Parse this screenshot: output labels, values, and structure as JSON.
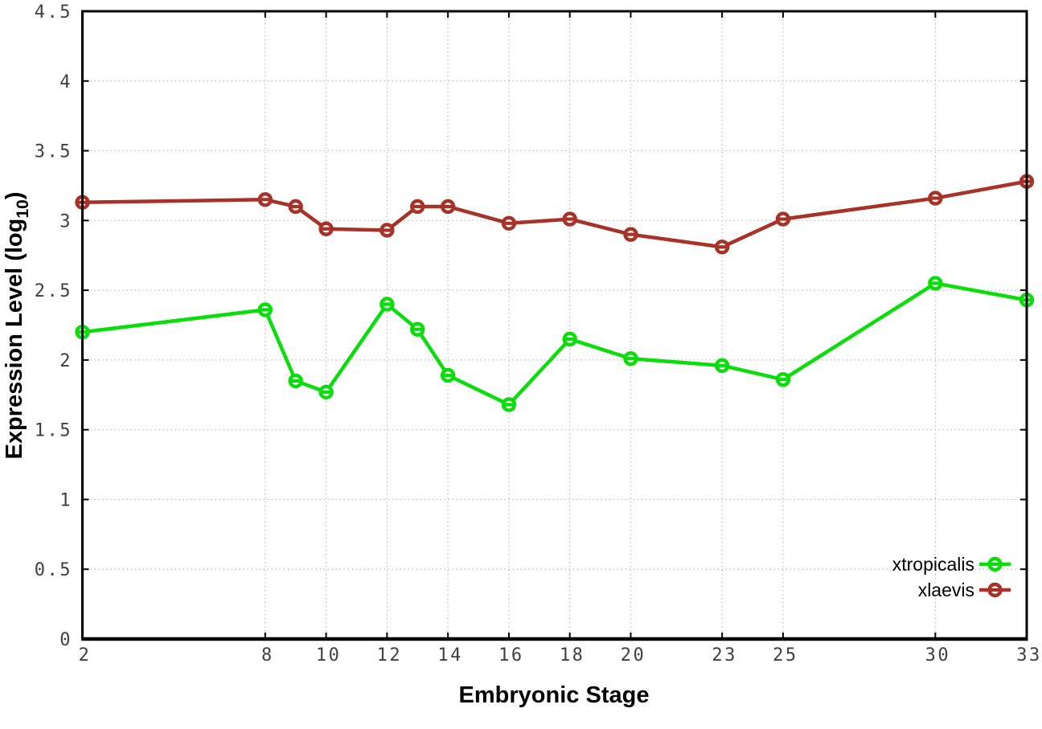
{
  "figure": {
    "background": "#ffffff"
  },
  "chart_data": {
    "type": "line",
    "title": "",
    "xlabel": "Embryonic Stage",
    "ylabel": "Expression Level (log10)",
    "ylabel_parts": {
      "main": "Expression Level (log",
      "sub": "10",
      "close": ")"
    },
    "x": [
      2,
      8,
      9,
      10,
      12,
      13,
      14,
      16,
      18,
      20,
      23,
      25,
      30,
      33
    ],
    "series": [
      {
        "name": "xtropicalis",
        "color": "#0bdd0b",
        "values": [
          2.2,
          2.36,
          1.85,
          1.77,
          2.4,
          2.22,
          1.89,
          1.68,
          2.15,
          2.01,
          1.96,
          1.86,
          2.55,
          2.43
        ]
      },
      {
        "name": "xlaevis",
        "color": "#a83228",
        "values": [
          3.13,
          3.15,
          3.1,
          2.94,
          2.93,
          3.1,
          3.1,
          2.98,
          3.01,
          2.9,
          2.81,
          3.01,
          3.16,
          3.28
        ]
      }
    ],
    "xlim": [
      2,
      33
    ],
    "ylim": [
      0,
      4.5
    ],
    "xticks": [
      2,
      8,
      10,
      12,
      14,
      16,
      18,
      20,
      23,
      25,
      30,
      33
    ],
    "yticks": [
      0,
      0.5,
      1,
      1.5,
      2,
      2.5,
      3,
      3.5,
      4,
      4.5
    ],
    "grid": true,
    "legend_position": "bottom-right",
    "marker": "open-circle-with-dash",
    "line_width": 4.5,
    "colors": {
      "axis": "#000000",
      "grid": "#bcbcbc",
      "tick_label": "#404040",
      "marker_fill": "#ffffff"
    }
  }
}
